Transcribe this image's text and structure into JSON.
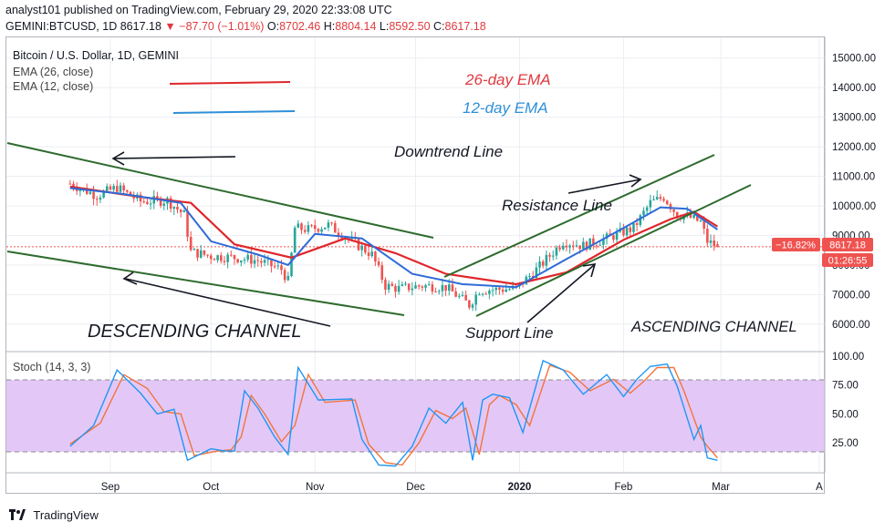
{
  "header": {
    "line1": "analyst101 published on TradingView.com, February 29, 2020 22:33:08 UTC",
    "symbol": "GEMINI:BTCUSD, 1D",
    "last": "8617.18",
    "change": "−87.70 (−1.01%)",
    "o_label": "O:",
    "o": "8702.46",
    "h_label": "H:",
    "h": "8804.14",
    "l_label": "L:",
    "l": "8592.50",
    "c_label": "C:",
    "c": "8617.18"
  },
  "legend": {
    "pair": "Bitcoin / U.S. Dollar, 1D, GEMINI",
    "ema26": "EMA (26, close)",
    "ema12": "EMA (12, close)"
  },
  "annotations": {
    "ema26_label": "26-day EMA",
    "ema12_label": "12-day EMA",
    "downtrend": "Downtrend Line",
    "resistance": "Resistance Line",
    "support": "Support Line",
    "descending": "DESCENDING CHANNEL",
    "ascending": "ASCENDING CHANNEL"
  },
  "price_badges": {
    "change_pct": "−16.82%",
    "price": "8617.18",
    "countdown": "01:26:55"
  },
  "stoch": {
    "label": "Stoch (14, 3, 3)"
  },
  "footer": {
    "brand": "TradingView"
  },
  "colors": {
    "candle_up": "#26a69a",
    "candle_down": "#ef5350",
    "ema26": "#e0262b",
    "ema12": "#2f6bd8",
    "trendline": "#2e6b2e",
    "stoch_k": "#2196f3",
    "stoch_d": "#f2743b",
    "stoch_band": "#e3c8f7",
    "price_badge": "#ef5350"
  },
  "chart_data": {
    "type": "candlestick",
    "price_axis": {
      "ticks": [
        6000,
        7000,
        8000,
        9000,
        10000,
        11000,
        12000,
        13000,
        14000,
        15000
      ],
      "tick_labels": [
        "6000.00",
        "7000.00",
        "8000.00",
        "9000.00",
        "10000.00",
        "11000.00",
        "12000.00",
        "13000.00",
        "14000.00",
        "15000.00"
      ],
      "ylim": [
        5100,
        15700
      ]
    },
    "stoch_axis": {
      "ticks": [
        25,
        50,
        75,
        100
      ],
      "tick_labels": [
        "25.00",
        "50.00",
        "75.00",
        "100.00"
      ],
      "ylim": [
        0,
        103
      ],
      "band": [
        20,
        80
      ]
    },
    "x_ticks": [
      "Sep",
      "Oct",
      "Nov",
      "Dec",
      "2020",
      "Feb",
      "Mar",
      "A"
    ],
    "close_path": [
      [
        "2019-08-20",
        10750
      ],
      [
        "2019-08-28",
        10350
      ],
      [
        "2019-09-03",
        10620
      ],
      [
        "2019-09-10",
        10150
      ],
      [
        "2019-09-18",
        10180
      ],
      [
        "2019-09-23",
        9700
      ],
      [
        "2019-09-25",
        8450
      ],
      [
        "2019-10-01",
        8300
      ],
      [
        "2019-10-08",
        8250
      ],
      [
        "2019-10-15",
        8150
      ],
      [
        "2019-10-22",
        7850
      ],
      [
        "2019-10-24",
        7450
      ],
      [
        "2019-10-26",
        9250
      ],
      [
        "2019-10-30",
        9200
      ],
      [
        "2019-11-05",
        9350
      ],
      [
        "2019-11-12",
        8800
      ],
      [
        "2019-11-18",
        8350
      ],
      [
        "2019-11-22",
        7300
      ],
      [
        "2019-11-26",
        7200
      ],
      [
        "2019-12-03",
        7300
      ],
      [
        "2019-12-10",
        7250
      ],
      [
        "2019-12-17",
        6650
      ],
      [
        "2019-12-20",
        7150
      ],
      [
        "2019-12-31",
        7200
      ],
      [
        "2020-01-07",
        7950
      ],
      [
        "2020-01-14",
        8800
      ],
      [
        "2020-01-20",
        8650
      ],
      [
        "2020-01-27",
        8900
      ],
      [
        "2020-02-04",
        9250
      ],
      [
        "2020-02-09",
        10100
      ],
      [
        "2020-02-13",
        10300
      ],
      [
        "2020-02-17",
        9700
      ],
      [
        "2020-02-20",
        9650
      ],
      [
        "2020-02-24",
        9450
      ],
      [
        "2020-02-26",
        8800
      ],
      [
        "2020-02-29",
        8617.18
      ]
    ],
    "ema12_path": [
      [
        "2019-08-20",
        10600
      ],
      [
        "2019-09-05",
        10400
      ],
      [
        "2019-09-22",
        10100
      ],
      [
        "2019-10-01",
        8800
      ],
      [
        "2019-10-15",
        8350
      ],
      [
        "2019-10-24",
        8000
      ],
      [
        "2019-11-01",
        9050
      ],
      [
        "2019-11-15",
        8900
      ],
      [
        "2019-11-30",
        7700
      ],
      [
        "2019-12-15",
        7350
      ],
      [
        "2019-12-31",
        7250
      ],
      [
        "2020-01-15",
        8200
      ],
      [
        "2020-02-01",
        9250
      ],
      [
        "2020-02-12",
        9950
      ],
      [
        "2020-02-20",
        9900
      ],
      [
        "2020-02-29",
        9200
      ]
    ],
    "ema26_path": [
      [
        "2019-08-20",
        10650
      ],
      [
        "2019-09-10",
        10300
      ],
      [
        "2019-09-25",
        10100
      ],
      [
        "2019-10-08",
        8700
      ],
      [
        "2019-10-25",
        8250
      ],
      [
        "2019-11-10",
        8900
      ],
      [
        "2019-11-25",
        8400
      ],
      [
        "2019-12-10",
        7700
      ],
      [
        "2019-12-31",
        7350
      ],
      [
        "2020-01-15",
        7750
      ],
      [
        "2020-02-01",
        8850
      ],
      [
        "2020-02-15",
        9550
      ],
      [
        "2020-02-22",
        9800
      ],
      [
        "2020-02-29",
        9300
      ]
    ],
    "stoch_k": [
      [
        "2019-08-20",
        22
      ],
      [
        "2019-08-27",
        40
      ],
      [
        "2019-09-03",
        88
      ],
      [
        "2019-09-10",
        68
      ],
      [
        "2019-09-15",
        50
      ],
      [
        "2019-09-20",
        54
      ],
      [
        "2019-09-24",
        10
      ],
      [
        "2019-10-01",
        20
      ],
      [
        "2019-10-05",
        18
      ],
      [
        "2019-10-08",
        18
      ],
      [
        "2019-10-11",
        70
      ],
      [
        "2019-10-15",
        55
      ],
      [
        "2019-10-20",
        30
      ],
      [
        "2019-10-24",
        15
      ],
      [
        "2019-10-27",
        90
      ],
      [
        "2019-11-02",
        62
      ],
      [
        "2019-11-12",
        63
      ],
      [
        "2019-11-15",
        28
      ],
      [
        "2019-11-20",
        6
      ],
      [
        "2019-11-25",
        5
      ],
      [
        "2019-11-30",
        22
      ],
      [
        "2019-12-05",
        55
      ],
      [
        "2019-12-10",
        42
      ],
      [
        "2019-12-15",
        60
      ],
      [
        "2019-12-18",
        10
      ],
      [
        "2019-12-21",
        62
      ],
      [
        "2019-12-24",
        67
      ],
      [
        "2019-12-29",
        64
      ],
      [
        "2020-01-02",
        34
      ],
      [
        "2020-01-08",
        96
      ],
      [
        "2020-01-14",
        88
      ],
      [
        "2020-01-20",
        67
      ],
      [
        "2020-01-27",
        84
      ],
      [
        "2020-02-01",
        65
      ],
      [
        "2020-02-05",
        80
      ],
      [
        "2020-02-09",
        91
      ],
      [
        "2020-02-14",
        93
      ],
      [
        "2020-02-17",
        74
      ],
      [
        "2020-02-22",
        28
      ],
      [
        "2020-02-24",
        40
      ],
      [
        "2020-02-26",
        12
      ],
      [
        "2020-02-29",
        10
      ]
    ],
    "stoch_d": [
      [
        "2019-08-20",
        24
      ],
      [
        "2019-08-29",
        42
      ],
      [
        "2019-09-05",
        84
      ],
      [
        "2019-09-12",
        72
      ],
      [
        "2019-09-17",
        52
      ],
      [
        "2019-09-22",
        50
      ],
      [
        "2019-09-26",
        14
      ],
      [
        "2019-10-03",
        18
      ],
      [
        "2019-10-07",
        19
      ],
      [
        "2019-10-10",
        30
      ],
      [
        "2019-10-13",
        66
      ],
      [
        "2019-10-17",
        50
      ],
      [
        "2019-10-22",
        26
      ],
      [
        "2019-10-26",
        40
      ],
      [
        "2019-10-30",
        84
      ],
      [
        "2019-11-04",
        60
      ],
      [
        "2019-11-13",
        62
      ],
      [
        "2019-11-17",
        24
      ],
      [
        "2019-11-22",
        8
      ],
      [
        "2019-11-27",
        6
      ],
      [
        "2019-12-02",
        25
      ],
      [
        "2019-12-07",
        53
      ],
      [
        "2019-12-12",
        46
      ],
      [
        "2019-12-16",
        55
      ],
      [
        "2019-12-20",
        15
      ],
      [
        "2019-12-23",
        58
      ],
      [
        "2019-12-26",
        66
      ],
      [
        "2019-12-31",
        58
      ],
      [
        "2020-01-04",
        40
      ],
      [
        "2020-01-10",
        92
      ],
      [
        "2020-01-16",
        86
      ],
      [
        "2020-01-22",
        70
      ],
      [
        "2020-01-29",
        80
      ],
      [
        "2020-02-03",
        68
      ],
      [
        "2020-02-07",
        78
      ],
      [
        "2020-02-11",
        90
      ],
      [
        "2020-02-16",
        90
      ],
      [
        "2020-02-19",
        70
      ],
      [
        "2020-02-24",
        30
      ],
      [
        "2020-02-26",
        22
      ],
      [
        "2020-02-29",
        12
      ]
    ]
  }
}
